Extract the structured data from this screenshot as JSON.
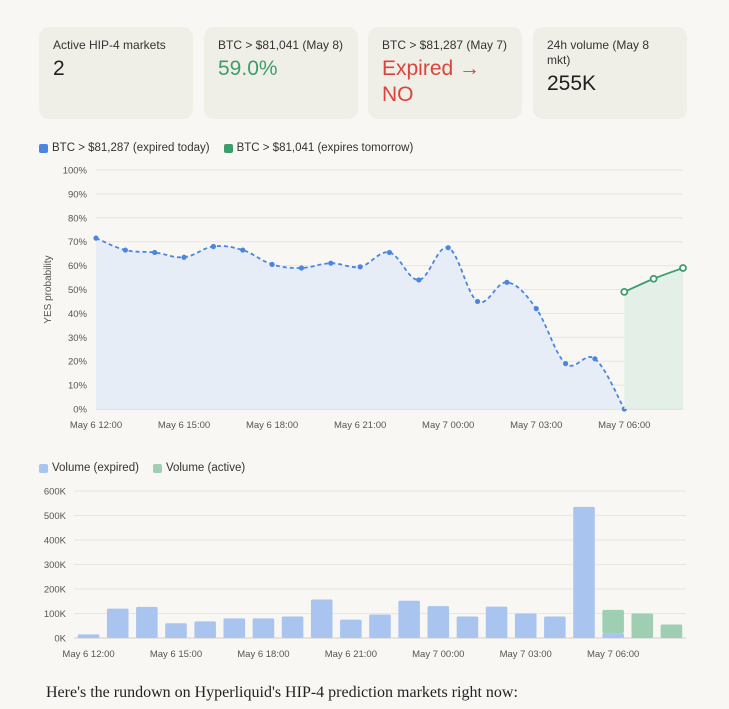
{
  "cards": [
    {
      "label": "Active HIP-4 markets",
      "value": "2",
      "tone": "default"
    },
    {
      "label": "BTC > $81,041 (May 8)",
      "value": "59.0%",
      "tone": "green"
    },
    {
      "label": "BTC > $81,287 (May 7)",
      "value": "Expired → NO",
      "tone": "red"
    },
    {
      "label": "24h volume (May 8 mkt)",
      "value": "255K",
      "tone": "default"
    }
  ],
  "colors": {
    "blue": "#4a86e0",
    "blue_fill": "#e6ecf6",
    "green": "#3d9e6c",
    "green_fill": "#e3efe6",
    "bar_blue": "#a9c4ef",
    "bar_green": "#9fcfb2"
  },
  "chart_data": [
    {
      "type": "line",
      "legend": [
        "BTC > $81,287 (expired today)",
        "BTC > $81,041 (expires tomorrow)"
      ],
      "ylabel": "YES probability",
      "y_ticks": [
        "0%",
        "10%",
        "20%",
        "30%",
        "40%",
        "50%",
        "60%",
        "70%",
        "80%",
        "90%",
        "100%"
      ],
      "ylim": [
        0,
        100
      ],
      "x_ticks": [
        "May 6 12:00",
        "May 6 15:00",
        "May 6 18:00",
        "May 6 21:00",
        "May 7 00:00",
        "May 7 03:00",
        "May 7 06:00"
      ],
      "x_range_hours": [
        12,
        32
      ],
      "grid": true,
      "legend_position": "top-left",
      "series": [
        {
          "name": "BTC > $81,287 (expired today)",
          "style": "dashed",
          "area": true,
          "x_hours": [
            12,
            13,
            14,
            15,
            16,
            17,
            18,
            19,
            20,
            21,
            22,
            23,
            24,
            25,
            26,
            27,
            28,
            29,
            30
          ],
          "y": [
            71.5,
            66.5,
            65.5,
            63.5,
            68,
            66.5,
            60.5,
            59,
            61,
            59.5,
            65.5,
            54,
            67.5,
            45,
            53,
            42,
            19,
            21,
            0
          ]
        },
        {
          "name": "BTC > $81,041 (expires tomorrow)",
          "style": "solid",
          "area": true,
          "x_hours": [
            30,
            31,
            32
          ],
          "y": [
            49,
            54.5,
            59
          ]
        }
      ]
    },
    {
      "type": "bar",
      "legend": [
        "Volume (expired)",
        "Volume (active)"
      ],
      "y_ticks": [
        "0K",
        "100K",
        "200K",
        "300K",
        "400K",
        "500K",
        "600K"
      ],
      "ylim": [
        0,
        600000
      ],
      "x_ticks": [
        "May 6 12:00",
        "May 6 15:00",
        "May 6 18:00",
        "May 6 21:00",
        "May 7 00:00",
        "May 7 03:00",
        "May 7 06:00"
      ],
      "grid": true,
      "legend_position": "top-left",
      "series": [
        {
          "name": "Volume (expired)",
          "values": [
            15000,
            120000,
            127000,
            60000,
            68000,
            80000,
            80000,
            88000,
            157000,
            75000,
            96000,
            152000,
            130000,
            88000,
            128000,
            100000,
            88000,
            535000,
            20000,
            0,
            0
          ]
        },
        {
          "name": "Volume (active)",
          "values": [
            0,
            0,
            0,
            0,
            0,
            0,
            0,
            0,
            0,
            0,
            0,
            0,
            0,
            0,
            0,
            0,
            0,
            0,
            95000,
            100000,
            55000
          ]
        }
      ]
    }
  ],
  "footer_text": "Here's the rundown on Hyperliquid's HIP-4 prediction markets right now:"
}
